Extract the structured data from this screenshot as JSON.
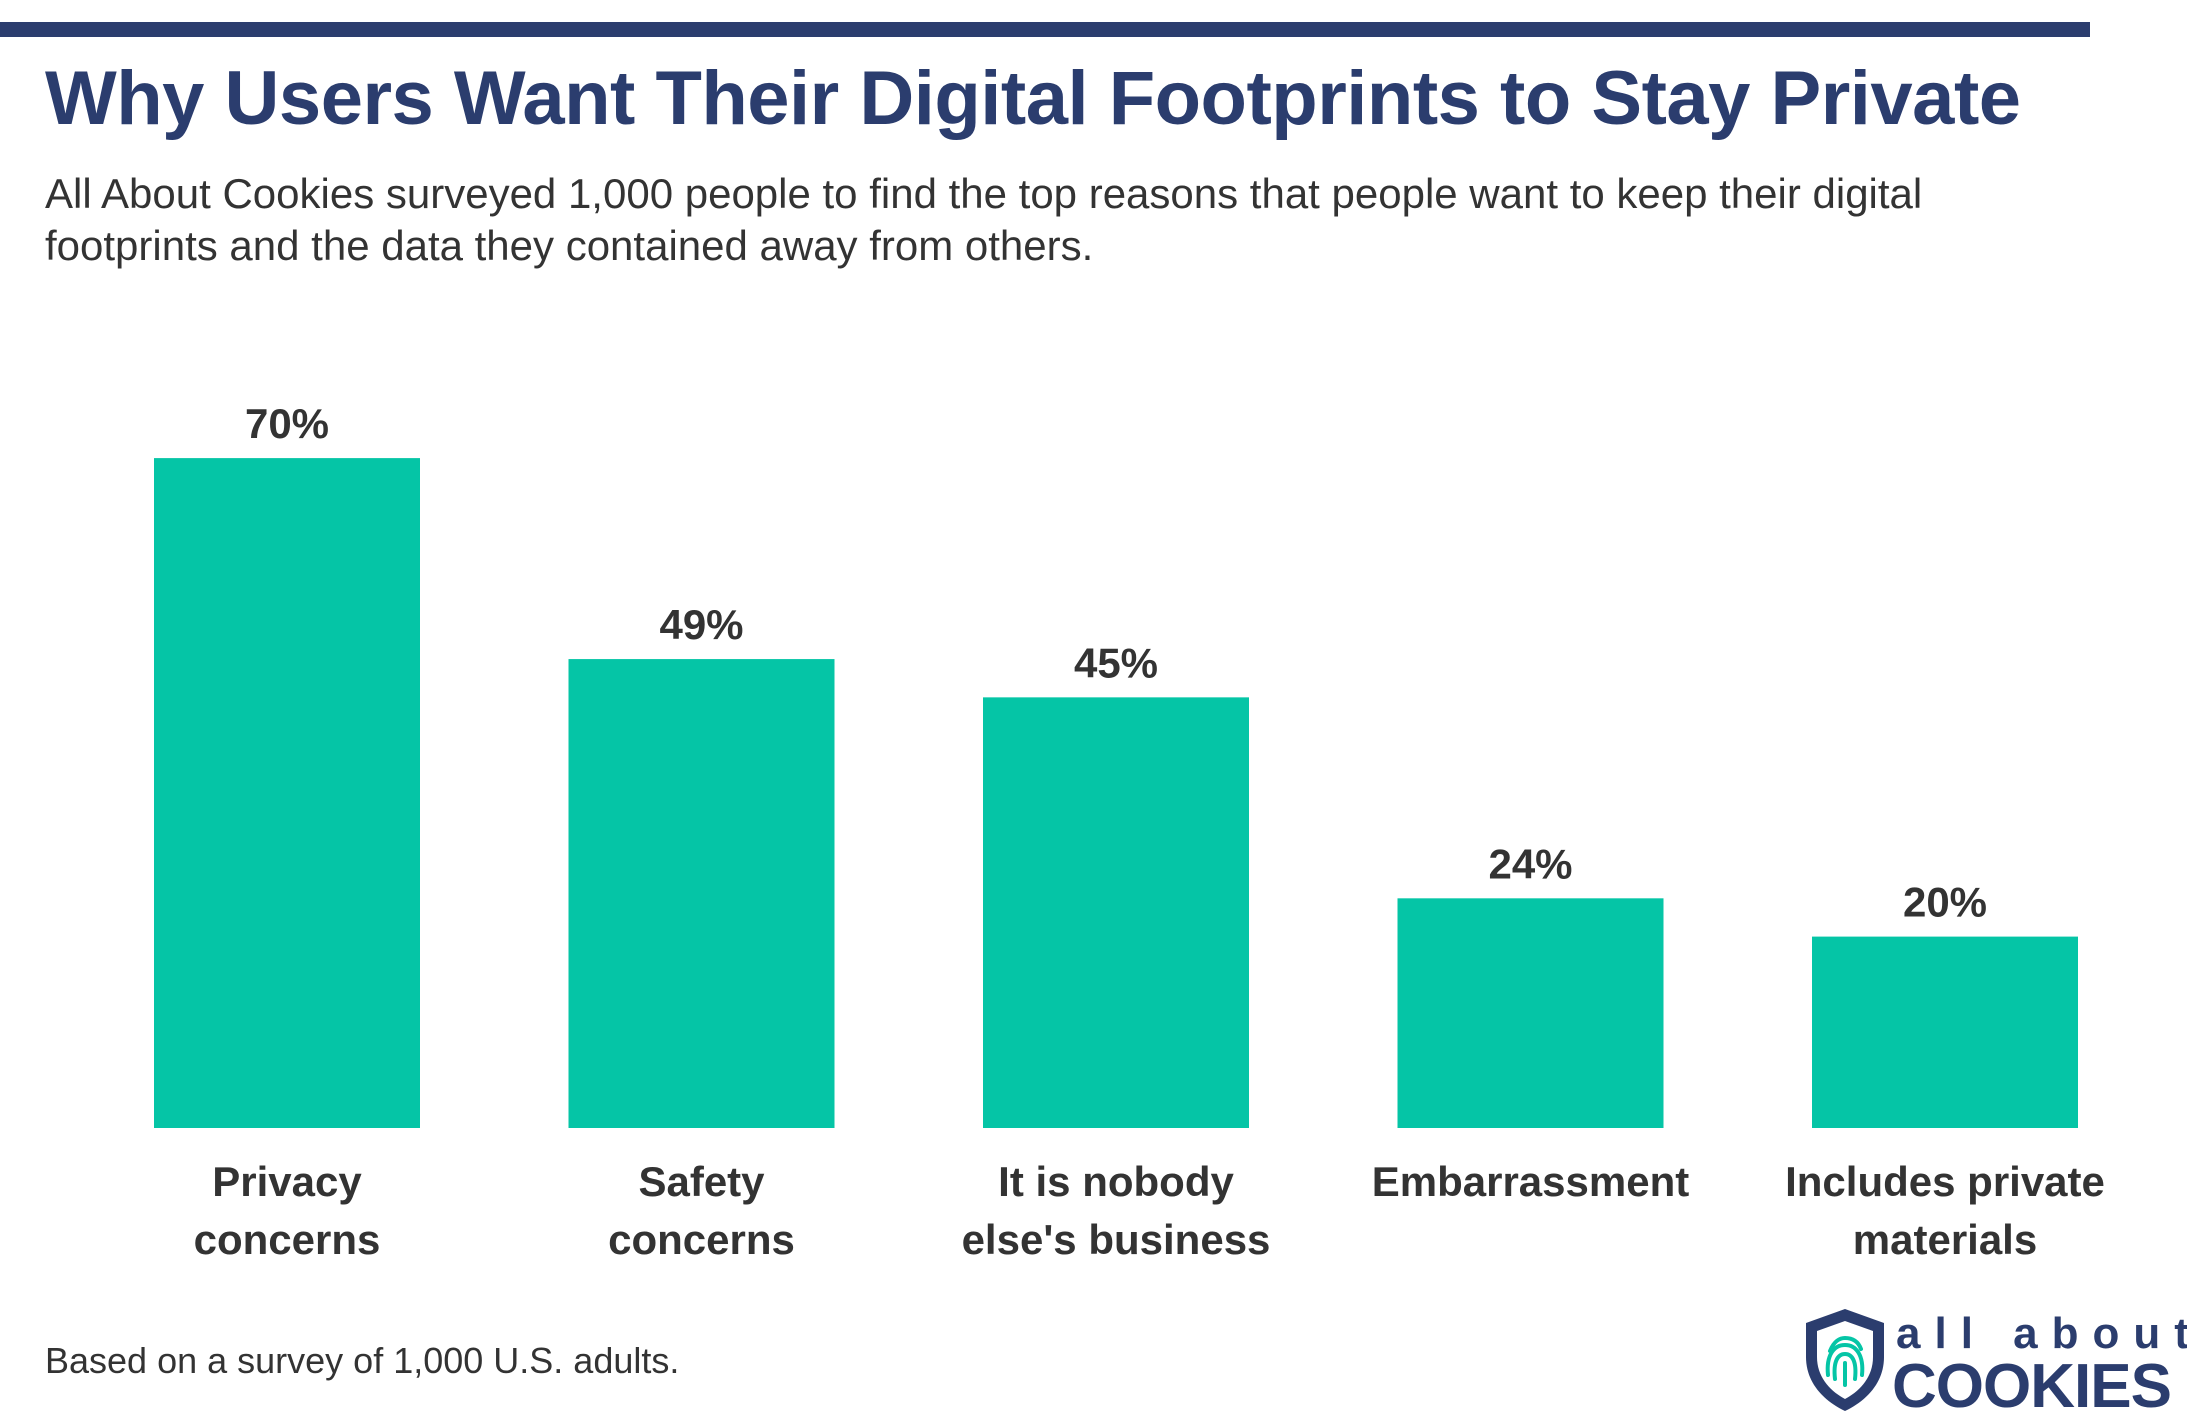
{
  "header": {
    "title": "Why Users Want Their Digital Footprints to Stay Private",
    "subtitle": "All About Cookies surveyed 1,000 people to find the top reasons that people want to keep their digital footprints and the data they contained away from others."
  },
  "footer": {
    "note": "Based on a survey of 1,000 U.S. adults.",
    "logo": {
      "line1": "all about",
      "line2": "COOKIES"
    }
  },
  "colors": {
    "bar": "#05c5a6",
    "title": "#2b3d6e",
    "text": "#333333",
    "logo_accent": "#05c5a6"
  },
  "chart_data": {
    "type": "bar",
    "title": "Why Users Want Their Digital Footprints to Stay Private",
    "xlabel": "",
    "ylabel": "",
    "ylim": [
      0,
      70
    ],
    "grid": false,
    "legend": "none",
    "categories": [
      [
        "Privacy",
        "concerns"
      ],
      [
        "Safety",
        "concerns"
      ],
      [
        "It is nobody",
        "else's business"
      ],
      [
        "Embarrassment"
      ],
      [
        "Includes private",
        "materials"
      ]
    ],
    "values": [
      70,
      49,
      45,
      24,
      20
    ],
    "value_labels": [
      "70%",
      "49%",
      "45%",
      "24%",
      "20%"
    ]
  }
}
